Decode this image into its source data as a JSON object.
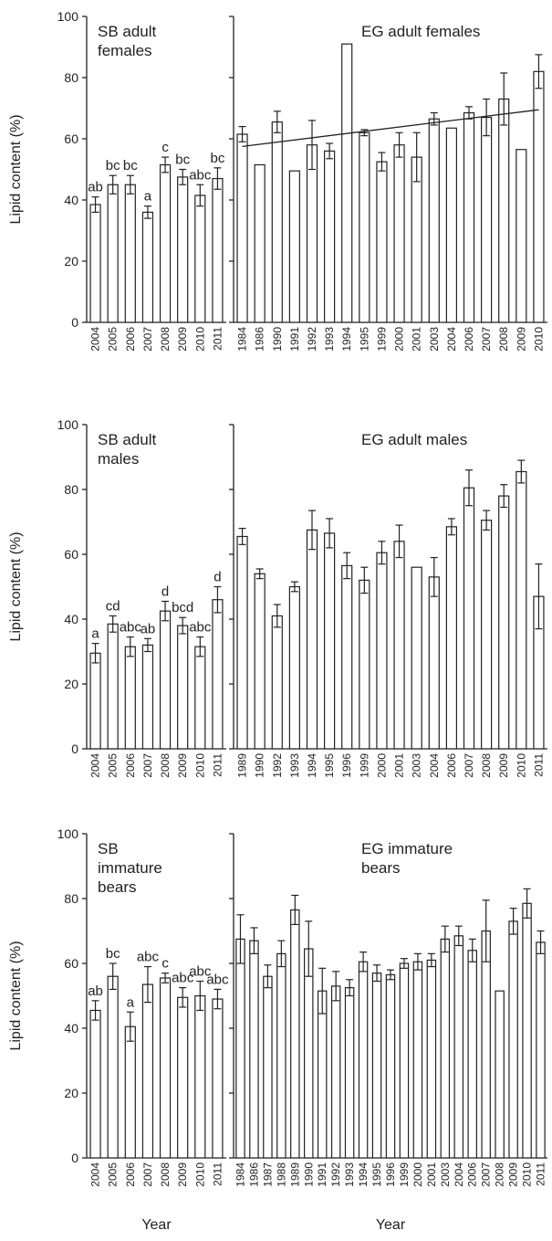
{
  "chart_data": [
    {
      "type": "bar",
      "title": [
        "SB adult",
        "females"
      ],
      "y_label": "Lipid content (%)",
      "categories": [
        "2004",
        "2005",
        "2006",
        "2007",
        "2008",
        "2009",
        "2010",
        "2011"
      ],
      "values": [
        38.5,
        45,
        45,
        36,
        51.5,
        47.5,
        41.5,
        47
      ],
      "errors": [
        2.5,
        3,
        3,
        2,
        2.5,
        2.5,
        3.5,
        3.5
      ],
      "significance_letters": [
        "ab",
        "bc",
        "bc",
        "a",
        "c",
        "bc",
        "abc",
        "bc"
      ],
      "ylim": [
        0,
        100
      ],
      "yticks": [
        0,
        20,
        40,
        60,
        80,
        100
      ]
    },
    {
      "type": "bar",
      "title": [
        "EG adult females"
      ],
      "categories": [
        "1984",
        "1986",
        "1990",
        "1991",
        "1992",
        "1993",
        "1994",
        "1995",
        "1999",
        "2000",
        "2001",
        "2003",
        "2004",
        "2006",
        "2007",
        "2008",
        "2009",
        "2010"
      ],
      "values": [
        61.5,
        51.5,
        65.5,
        49.5,
        58,
        56,
        91,
        62,
        52.5,
        58,
        54,
        66.5,
        63.5,
        68.5,
        67,
        73,
        56.5,
        82
      ],
      "errors": [
        2.5,
        null,
        3.5,
        null,
        8,
        2.5,
        null,
        1,
        3,
        4,
        8,
        2,
        null,
        2,
        6,
        8.5,
        null,
        5.5
      ],
      "trend_line": {
        "start": 57.5,
        "end": 69.5
      },
      "ylim": [
        0,
        100
      ],
      "yticks": [
        0,
        20,
        40,
        60,
        80,
        100
      ]
    },
    {
      "type": "bar",
      "title": [
        "SB adult",
        "males"
      ],
      "y_label": "Lipid content (%)",
      "categories": [
        "2004",
        "2005",
        "2006",
        "2007",
        "2008",
        "2009",
        "2010",
        "2011"
      ],
      "values": [
        29.5,
        38.5,
        31.5,
        32,
        42.5,
        38,
        31.5,
        46
      ],
      "errors": [
        3,
        2.5,
        3,
        2,
        3,
        2.5,
        3,
        4
      ],
      "significance_letters": [
        "a",
        "cd",
        "abc",
        "ab",
        "d",
        "bcd",
        "abc",
        "d"
      ],
      "ylim": [
        0,
        100
      ],
      "yticks": [
        0,
        20,
        40,
        60,
        80,
        100
      ]
    },
    {
      "type": "bar",
      "title": [
        "EG adult males"
      ],
      "categories": [
        "1989",
        "1990",
        "1992",
        "1993",
        "1994",
        "1995",
        "1996",
        "1999",
        "2000",
        "2001",
        "2003",
        "2004",
        "2006",
        "2007",
        "2008",
        "2009",
        "2010",
        "2011"
      ],
      "values": [
        65.5,
        54,
        41,
        50,
        67.5,
        66.5,
        56.5,
        52,
        60.5,
        64,
        56,
        53,
        68.5,
        80.5,
        70.5,
        78,
        85.5,
        47
      ],
      "errors": [
        2.5,
        1.5,
        3.5,
        1.5,
        6,
        4.5,
        4,
        4,
        3.5,
        5,
        null,
        6,
        2.5,
        5.5,
        3,
        3.5,
        3.5,
        10
      ],
      "ylim": [
        0,
        100
      ],
      "yticks": [
        0,
        20,
        40,
        60,
        80,
        100
      ]
    },
    {
      "type": "bar",
      "title": [
        "SB",
        "immature",
        "bears"
      ],
      "y_label": "Lipid content (%)",
      "x_label": "Year",
      "categories": [
        "2004",
        "2005",
        "2006",
        "2007",
        "2008",
        "2009",
        "2010",
        "2011"
      ],
      "values": [
        45.5,
        56,
        40.5,
        53.5,
        55.5,
        49.5,
        50,
        49
      ],
      "errors": [
        3,
        4,
        4.5,
        5.5,
        1.5,
        3,
        4.5,
        3
      ],
      "significance_letters": [
        "ab",
        "bc",
        "a",
        "abc",
        "c",
        "abc",
        "abc",
        "abc"
      ],
      "ylim": [
        0,
        100
      ],
      "yticks": [
        0,
        20,
        40,
        60,
        80,
        100
      ]
    },
    {
      "type": "bar",
      "title": [
        "EG immature",
        "bears"
      ],
      "x_label": "Year",
      "categories": [
        "1984",
        "1986",
        "1987",
        "1988",
        "1989",
        "1990",
        "1991",
        "1992",
        "1993",
        "1994",
        "1995",
        "1996",
        "1999",
        "2000",
        "2001",
        "2003",
        "2004",
        "2006",
        "2007",
        "2008",
        "2009",
        "2010",
        "2011"
      ],
      "values": [
        67.5,
        67,
        56,
        63,
        76.5,
        64.5,
        51.5,
        53,
        52.5,
        60.5,
        57,
        56.5,
        60,
        60.5,
        61,
        67.5,
        68.5,
        64,
        70,
        51.5,
        73,
        78.5,
        66.5
      ],
      "errors": [
        7.5,
        4,
        3.5,
        4,
        4.5,
        8.5,
        7,
        4.5,
        2.5,
        3,
        2.5,
        1.5,
        1.5,
        2.5,
        2,
        4,
        3,
        3.5,
        9.5,
        null,
        4,
        4.5,
        3.5
      ],
      "ylim": [
        0,
        100
      ],
      "yticks": [
        0,
        20,
        40,
        60,
        80,
        100
      ]
    }
  ]
}
